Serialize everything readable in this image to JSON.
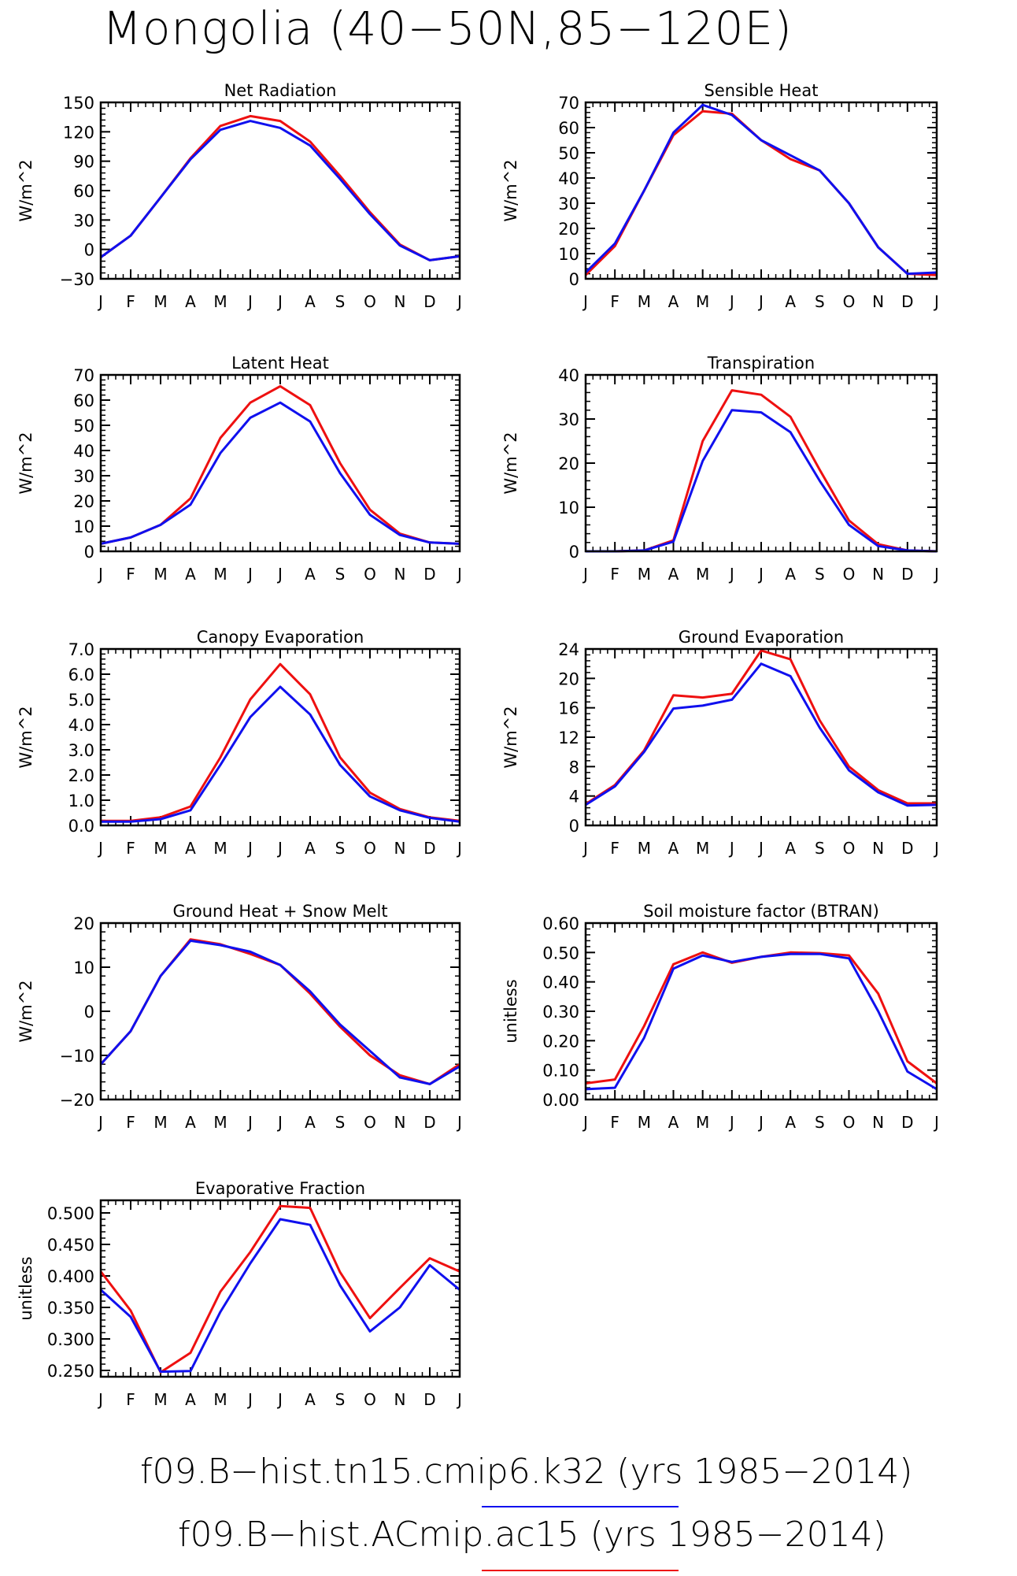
{
  "title": "Mongolia (40−50N,85−120E)",
  "months": [
    "J",
    "F",
    "M",
    "A",
    "M",
    "J",
    "J",
    "A",
    "S",
    "O",
    "N",
    "D",
    "J"
  ],
  "colors": {
    "case1": "#1010ee",
    "case2": "#ee1010"
  },
  "legend": [
    {
      "label": "f09.B−hist.tn15.cmip6.k32 (yrs 1985−2014)",
      "color": "#1010ee"
    },
    {
      "label": "f09.B−hist.ACmip.ac15 (yrs 1985−2014)",
      "color": "#ee1010"
    }
  ],
  "chart_data": [
    {
      "type": "line",
      "title": "Net Radiation",
      "ylabel": "W/m^2",
      "ylim": [
        -30,
        150
      ],
      "yticks": [
        -30,
        0,
        30,
        60,
        90,
        120,
        150
      ],
      "ytick_labels": [
        "−30",
        "0",
        "30",
        "60",
        "90",
        "120",
        "150"
      ],
      "series": [
        {
          "values": [
            -8,
            14,
            53,
            92,
            122,
            131,
            124,
            106,
            72,
            36,
            4,
            -11,
            -7
          ]
        },
        {
          "values": [
            -8,
            14,
            53,
            93,
            126,
            136,
            131,
            110,
            75,
            38,
            5,
            -11,
            -7
          ]
        }
      ]
    },
    {
      "type": "line",
      "title": "Sensible Heat",
      "ylabel": "W/m^2",
      "ylim": [
        0,
        70
      ],
      "yticks": [
        0,
        10,
        20,
        30,
        40,
        50,
        60,
        70
      ],
      "ytick_labels": [
        "0",
        "10",
        "20",
        "30",
        "40",
        "50",
        "60",
        "70"
      ],
      "series": [
        {
          "values": [
            2.5,
            14,
            35,
            58,
            69,
            65,
            55,
            49,
            43,
            30,
            12.5,
            2,
            2.5
          ]
        },
        {
          "values": [
            1.5,
            13,
            35,
            57,
            66.5,
            65.5,
            55,
            47.5,
            43,
            30,
            12.5,
            2,
            1.5
          ]
        }
      ]
    },
    {
      "type": "line",
      "title": "Latent Heat",
      "ylabel": "W/m^2",
      "ylim": [
        0,
        70
      ],
      "yticks": [
        0,
        10,
        20,
        30,
        40,
        50,
        60,
        70
      ],
      "ytick_labels": [
        "0",
        "10",
        "20",
        "30",
        "40",
        "50",
        "60",
        "70"
      ],
      "series": [
        {
          "values": [
            3,
            5.5,
            10.5,
            18.5,
            39,
            53,
            59,
            51.5,
            31,
            14.5,
            6.5,
            3.5,
            3
          ]
        },
        {
          "values": [
            3,
            5.5,
            10.5,
            21,
            45,
            59,
            65.5,
            58,
            35,
            16.5,
            7,
            3.5,
            3
          ]
        }
      ]
    },
    {
      "type": "line",
      "title": "Transpiration",
      "ylabel": "W/m^2",
      "ylim": [
        0,
        40
      ],
      "yticks": [
        0,
        10,
        20,
        30,
        40
      ],
      "ytick_labels": [
        "0",
        "10",
        "20",
        "30",
        "40"
      ],
      "series": [
        {
          "values": [
            0,
            0,
            0.2,
            2.2,
            20.5,
            32,
            31.5,
            27,
            16,
            6,
            1.2,
            0.2,
            0
          ]
        },
        {
          "values": [
            0,
            0,
            0.2,
            2.5,
            25,
            36.5,
            35.5,
            30.5,
            18.5,
            7,
            1.6,
            0.2,
            0
          ]
        }
      ]
    },
    {
      "type": "line",
      "title": "Canopy Evaporation",
      "ylabel": "W/m^2",
      "ylim": [
        0,
        7
      ],
      "yticks": [
        0,
        1,
        2,
        3,
        4,
        5,
        6,
        7
      ],
      "ytick_labels": [
        "0.0",
        "1.0",
        "2.0",
        "3.0",
        "4.0",
        "5.0",
        "6.0",
        "7.0"
      ],
      "series": [
        {
          "values": [
            0.15,
            0.15,
            0.25,
            0.6,
            2.4,
            4.3,
            5.5,
            4.4,
            2.4,
            1.15,
            0.6,
            0.3,
            0.15
          ]
        },
        {
          "values": [
            0.18,
            0.18,
            0.32,
            0.75,
            2.7,
            5.0,
            6.4,
            5.2,
            2.7,
            1.3,
            0.65,
            0.32,
            0.18
          ]
        }
      ]
    },
    {
      "type": "line",
      "title": "Ground Evaporation",
      "ylabel": "W/m^2",
      "ylim": [
        0,
        24
      ],
      "yticks": [
        0,
        4,
        8,
        12,
        16,
        20,
        24
      ],
      "ytick_labels": [
        "0",
        "4",
        "8",
        "12",
        "16",
        "20",
        "24"
      ],
      "series": [
        {
          "values": [
            2.8,
            5.3,
            10,
            15.9,
            16.3,
            17.1,
            22,
            20.3,
            13.3,
            7.5,
            4.5,
            2.7,
            2.8
          ]
        },
        {
          "values": [
            2.9,
            5.5,
            10.2,
            17.7,
            17.4,
            17.9,
            23.8,
            22.6,
            14.3,
            8.0,
            4.8,
            3.0,
            3.0
          ]
        }
      ]
    },
    {
      "type": "line",
      "title": "Ground Heat + Snow Melt",
      "ylabel": "W/m^2",
      "ylim": [
        -20,
        20
      ],
      "yticks": [
        -20,
        -10,
        0,
        10,
        20
      ],
      "ytick_labels": [
        "−20",
        "−10",
        "0",
        "10",
        "20"
      ],
      "series": [
        {
          "values": [
            -12,
            -4.5,
            8,
            16,
            15,
            13.5,
            10.5,
            4.5,
            -3,
            -9,
            -15,
            -16.5,
            -12.5
          ]
        },
        {
          "values": [
            -12,
            -4.5,
            8,
            16.3,
            15.2,
            13,
            10.5,
            4,
            -3.5,
            -10,
            -14.5,
            -16.5,
            -12
          ]
        }
      ]
    },
    {
      "type": "line",
      "title": "Soil moisture factor (BTRAN)",
      "ylabel": "unitless",
      "ylim": [
        0,
        0.6
      ],
      "yticks": [
        0,
        0.1,
        0.2,
        0.3,
        0.4,
        0.5,
        0.6
      ],
      "ytick_labels": [
        "0.00",
        "0.10",
        "0.20",
        "0.30",
        "0.40",
        "0.50",
        "0.60"
      ],
      "series": [
        {
          "values": [
            0.035,
            0.04,
            0.21,
            0.445,
            0.49,
            0.468,
            0.485,
            0.495,
            0.495,
            0.48,
            0.3,
            0.095,
            0.035
          ]
        },
        {
          "values": [
            0.055,
            0.068,
            0.25,
            0.46,
            0.5,
            0.465,
            0.485,
            0.5,
            0.498,
            0.49,
            0.36,
            0.13,
            0.055
          ]
        }
      ]
    },
    {
      "type": "line",
      "title": "Evaporative Fraction",
      "ylabel": "unitless",
      "ylim": [
        0.24,
        0.52
      ],
      "yticks": [
        0.25,
        0.3,
        0.35,
        0.4,
        0.45,
        0.5
      ],
      "ytick_labels": [
        "0.250",
        "0.300",
        "0.350",
        "0.400",
        "0.450",
        "0.500"
      ],
      "series": [
        {
          "values": [
            0.378,
            0.335,
            0.248,
            0.249,
            0.343,
            0.42,
            0.49,
            0.481,
            0.385,
            0.312,
            0.35,
            0.417,
            0.378
          ]
        },
        {
          "values": [
            0.407,
            0.345,
            0.247,
            0.278,
            0.375,
            0.438,
            0.511,
            0.508,
            0.406,
            0.333,
            0.381,
            0.428,
            0.407
          ]
        }
      ]
    }
  ]
}
